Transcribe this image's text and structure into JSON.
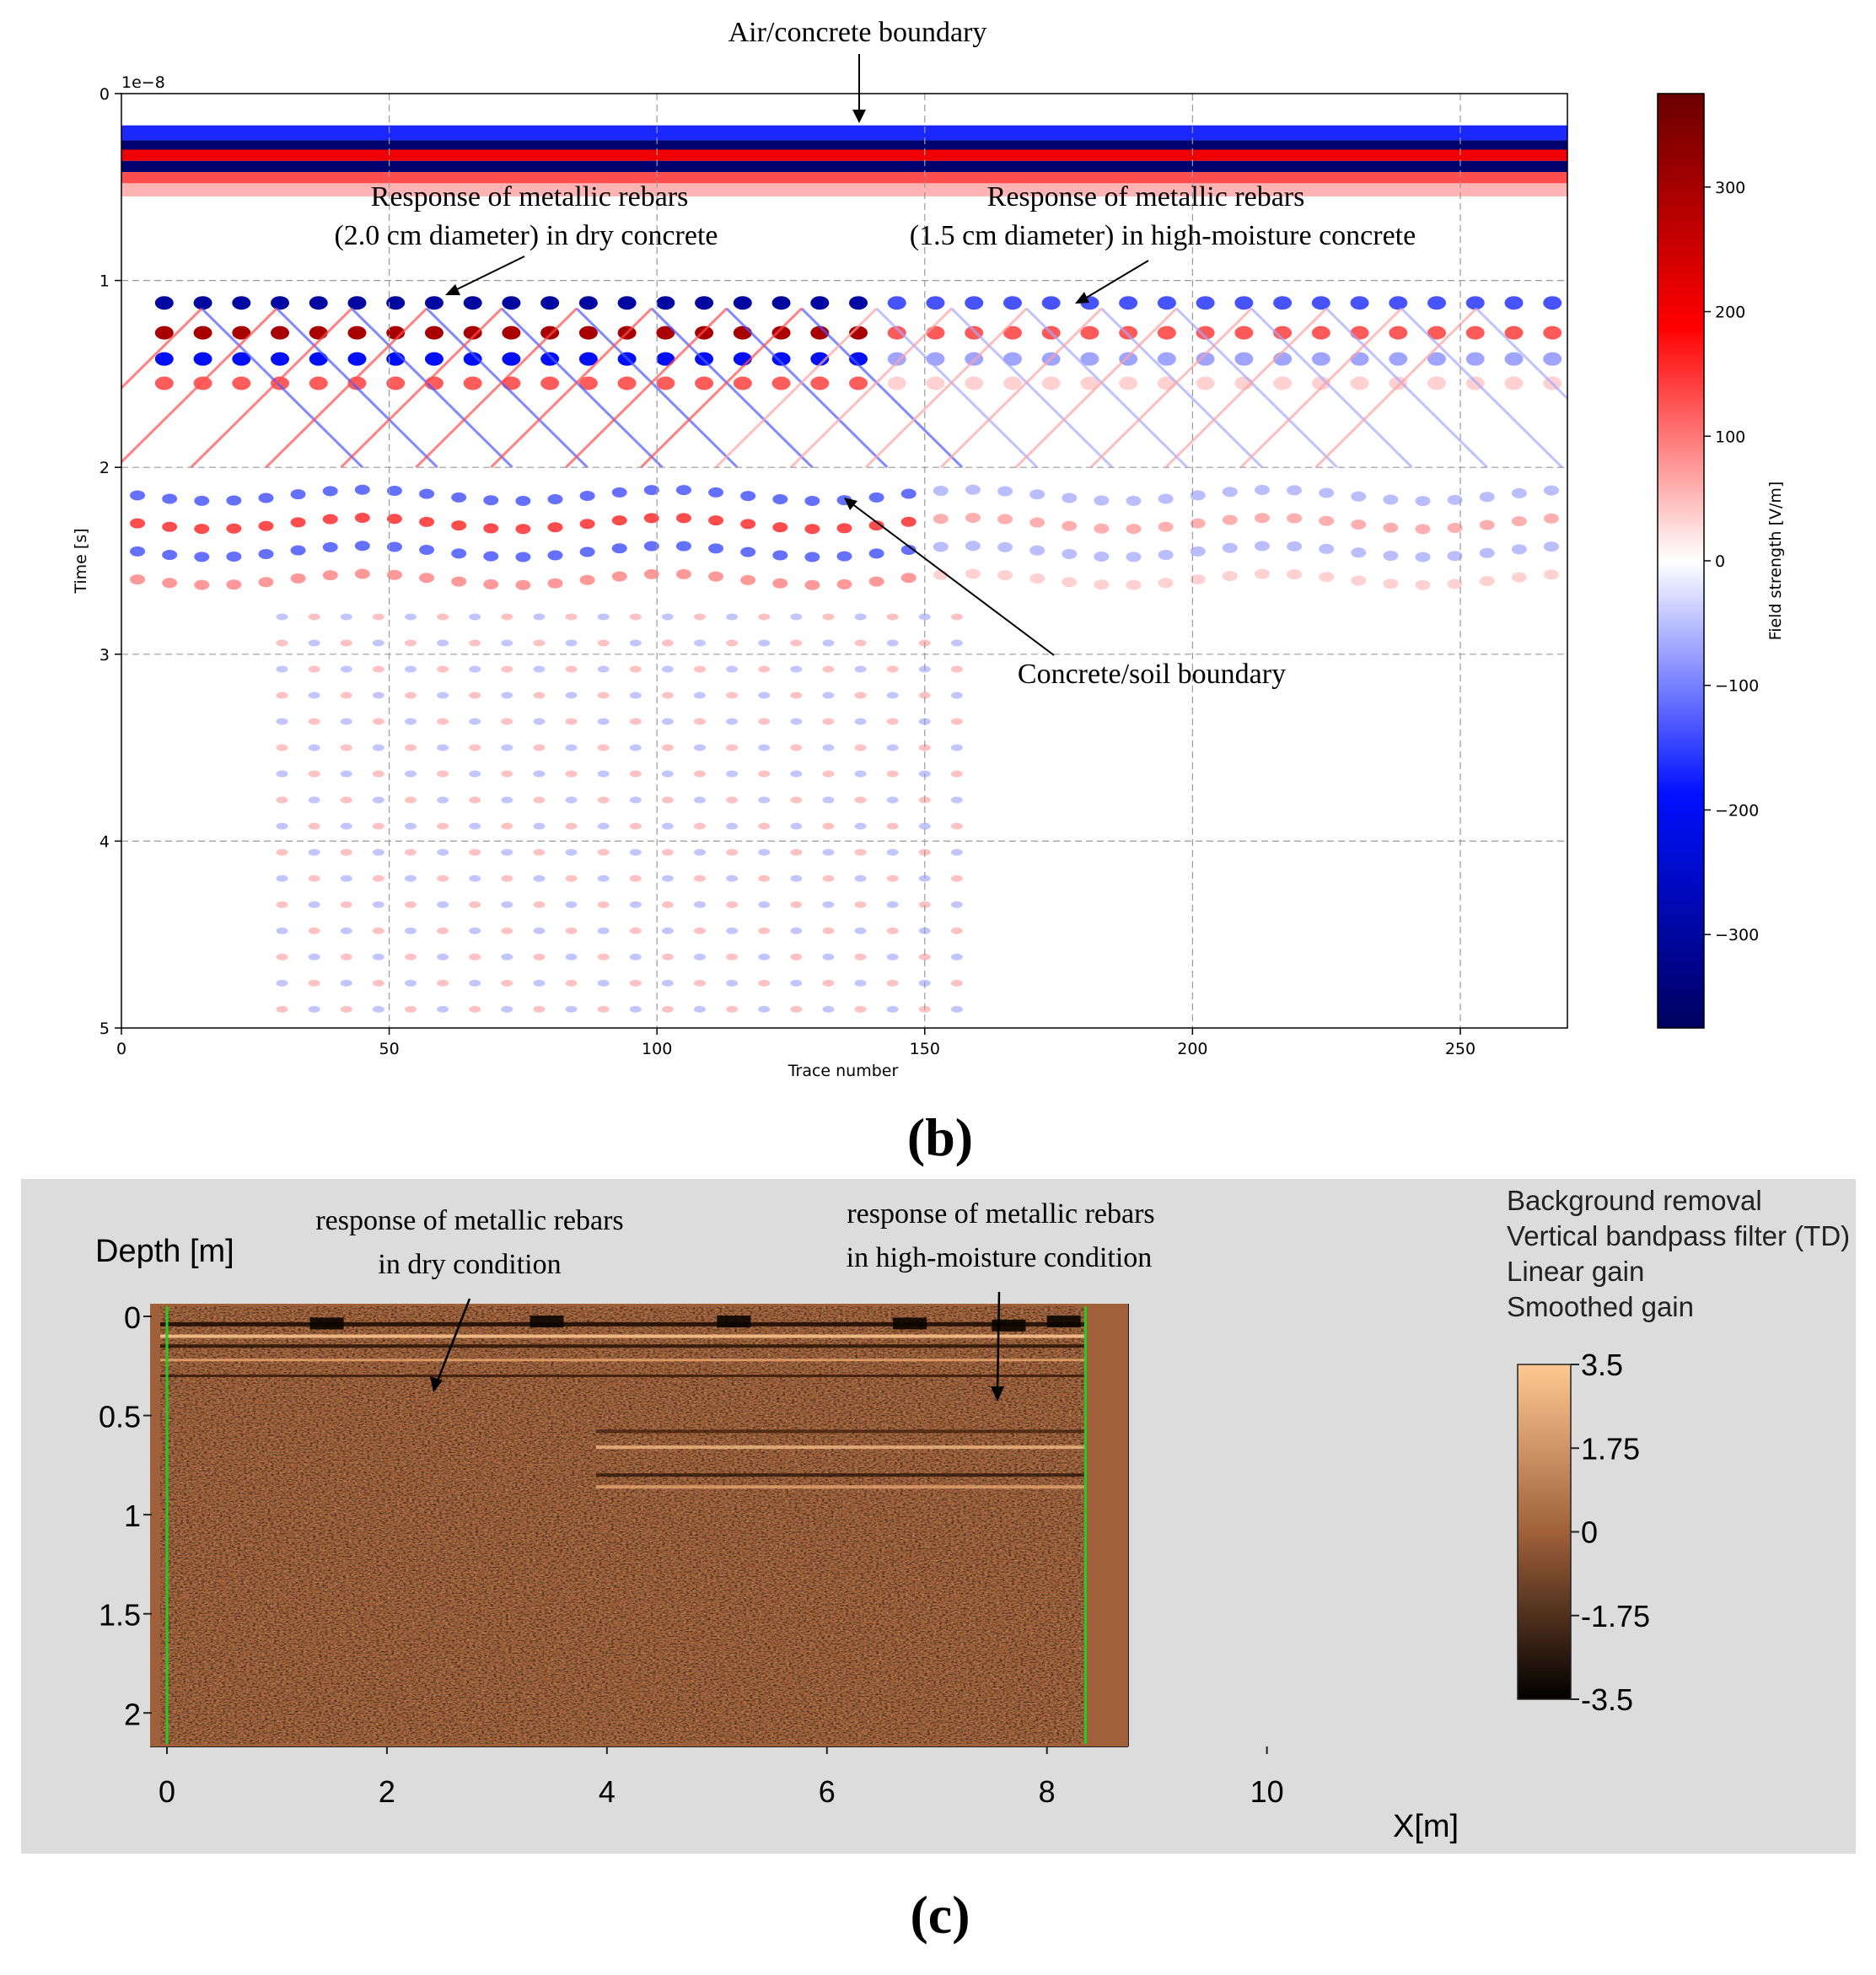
{
  "colors": {
    "cmap_neg": "#000060",
    "cmap_neg_mid": "#0010ff",
    "cmap_zero": "#ffffff",
    "cmap_pos_mid": "#ff0000",
    "cmap_pos": "#6a0000",
    "copper_low": "#000000",
    "copper_mid": "#a0613a",
    "copper_high": "#ffc892",
    "panel_c_bg": "#dcdcdc",
    "trace_marker": "#22cc22"
  },
  "panel_b": {
    "label": "(b)",
    "offset_label": "1e−8",
    "annotations": {
      "air_concrete": "Air/concrete  boundary",
      "dry_line1": "Response  of metallic  rebars",
      "dry_line2": "(2.0  cm  diameter)  in  dry  concrete",
      "wet_line1": "Response  of metallic  rebars",
      "wet_line2": "(1.5  cm  diameter)  in  high-moisture  concrete",
      "soil": "Concrete/soil  boundary"
    }
  },
  "panel_c": {
    "label": "(c)",
    "processing": [
      "Background removal",
      "Vertical bandpass filter (TD)",
      "Linear gain",
      "Smoothed gain"
    ],
    "annotations": {
      "dry_line1": "response of metallic rebars",
      "dry_line2": "in dry condition",
      "wet_line1": "response of metallic rebars",
      "wet_line2": "in high-moisture condition"
    }
  },
  "chart_data": [
    {
      "type": "heatmap",
      "title": "",
      "xlabel": "Trace number",
      "ylabel": "Time [s]",
      "x_range": [
        0,
        270
      ],
      "y_range": [
        0,
        5
      ],
      "y_scale_factor": "1e−8",
      "x_ticks": [
        "0",
        "50",
        "100",
        "150",
        "200",
        "250"
      ],
      "y_ticks": [
        "0",
        "1",
        "2",
        "3",
        "4",
        "5"
      ],
      "grid": true,
      "colorbar": {
        "label": "Field strength [V/m]",
        "range": [
          -375,
          375
        ],
        "ticks": [
          "300",
          "200",
          "100",
          "0",
          "−100",
          "−200",
          "−300"
        ],
        "tick_values": [
          300,
          200,
          100,
          0,
          -100,
          -200,
          -300
        ]
      },
      "features": [
        {
          "name": "Air/concrete boundary",
          "time": 0.25
        },
        {
          "name": "Rebar responses",
          "time": 1.1
        },
        {
          "name": "Concrete/soil boundary",
          "time": 2.1
        }
      ]
    },
    {
      "type": "heatmap",
      "title": "",
      "xlabel": "X[m]",
      "ylabel": "Depth [m]",
      "x_range": [
        0,
        10.5
      ],
      "y_range": [
        0,
        2.2
      ],
      "x_ticks": [
        "0",
        "2",
        "4",
        "6",
        "8",
        "10"
      ],
      "y_ticks": [
        "0",
        "0.5",
        "1",
        "1.5",
        "2"
      ],
      "data_extent_x": [
        0,
        8.35
      ],
      "colorbar": {
        "range": [
          -3.5,
          3.5
        ],
        "ticks": [
          "3.5",
          "1.75",
          "0",
          "-1.75",
          "-3.5"
        ],
        "tick_values": [
          3.5,
          1.75,
          0,
          -1.75,
          -3.5
        ]
      }
    }
  ]
}
